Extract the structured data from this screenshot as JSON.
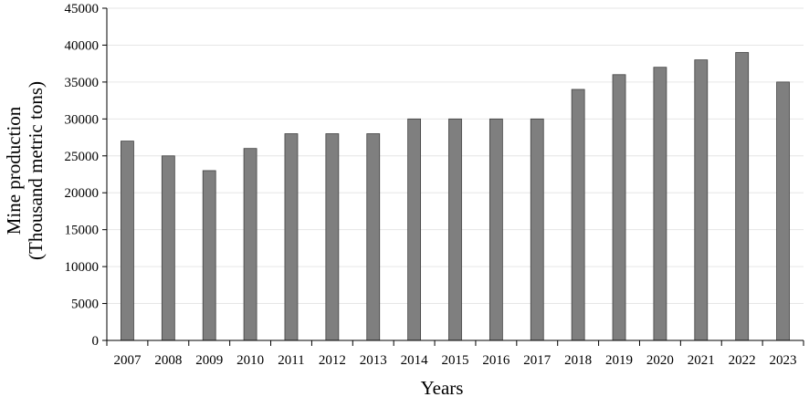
{
  "chart_data": {
    "type": "bar",
    "title": "",
    "xlabel": "Years",
    "ylabel_lines": [
      "Mine production",
      "(Thousand metric tons)"
    ],
    "categories": [
      "2007",
      "2008",
      "2009",
      "2010",
      "2011",
      "2012",
      "2013",
      "2014",
      "2015",
      "2016",
      "2017",
      "2018",
      "2019",
      "2020",
      "2021",
      "2022",
      "2023"
    ],
    "values": [
      27000,
      25000,
      23000,
      26000,
      28000,
      28000,
      28000,
      30000,
      30000,
      30000,
      30000,
      34000,
      36000,
      37000,
      38000,
      39000,
      35000
    ],
    "ylim": [
      0,
      45000
    ],
    "yticks": [
      "0",
      "5000",
      "10000",
      "15000",
      "20000",
      "25000",
      "30000",
      "35000",
      "40000",
      "45000"
    ],
    "grid": true,
    "legend": "none",
    "colors": {
      "bar_fill": "#7f7f7f",
      "bar_stroke": "#404040",
      "grid": "#e6e6e6",
      "axis": "#000000"
    }
  }
}
